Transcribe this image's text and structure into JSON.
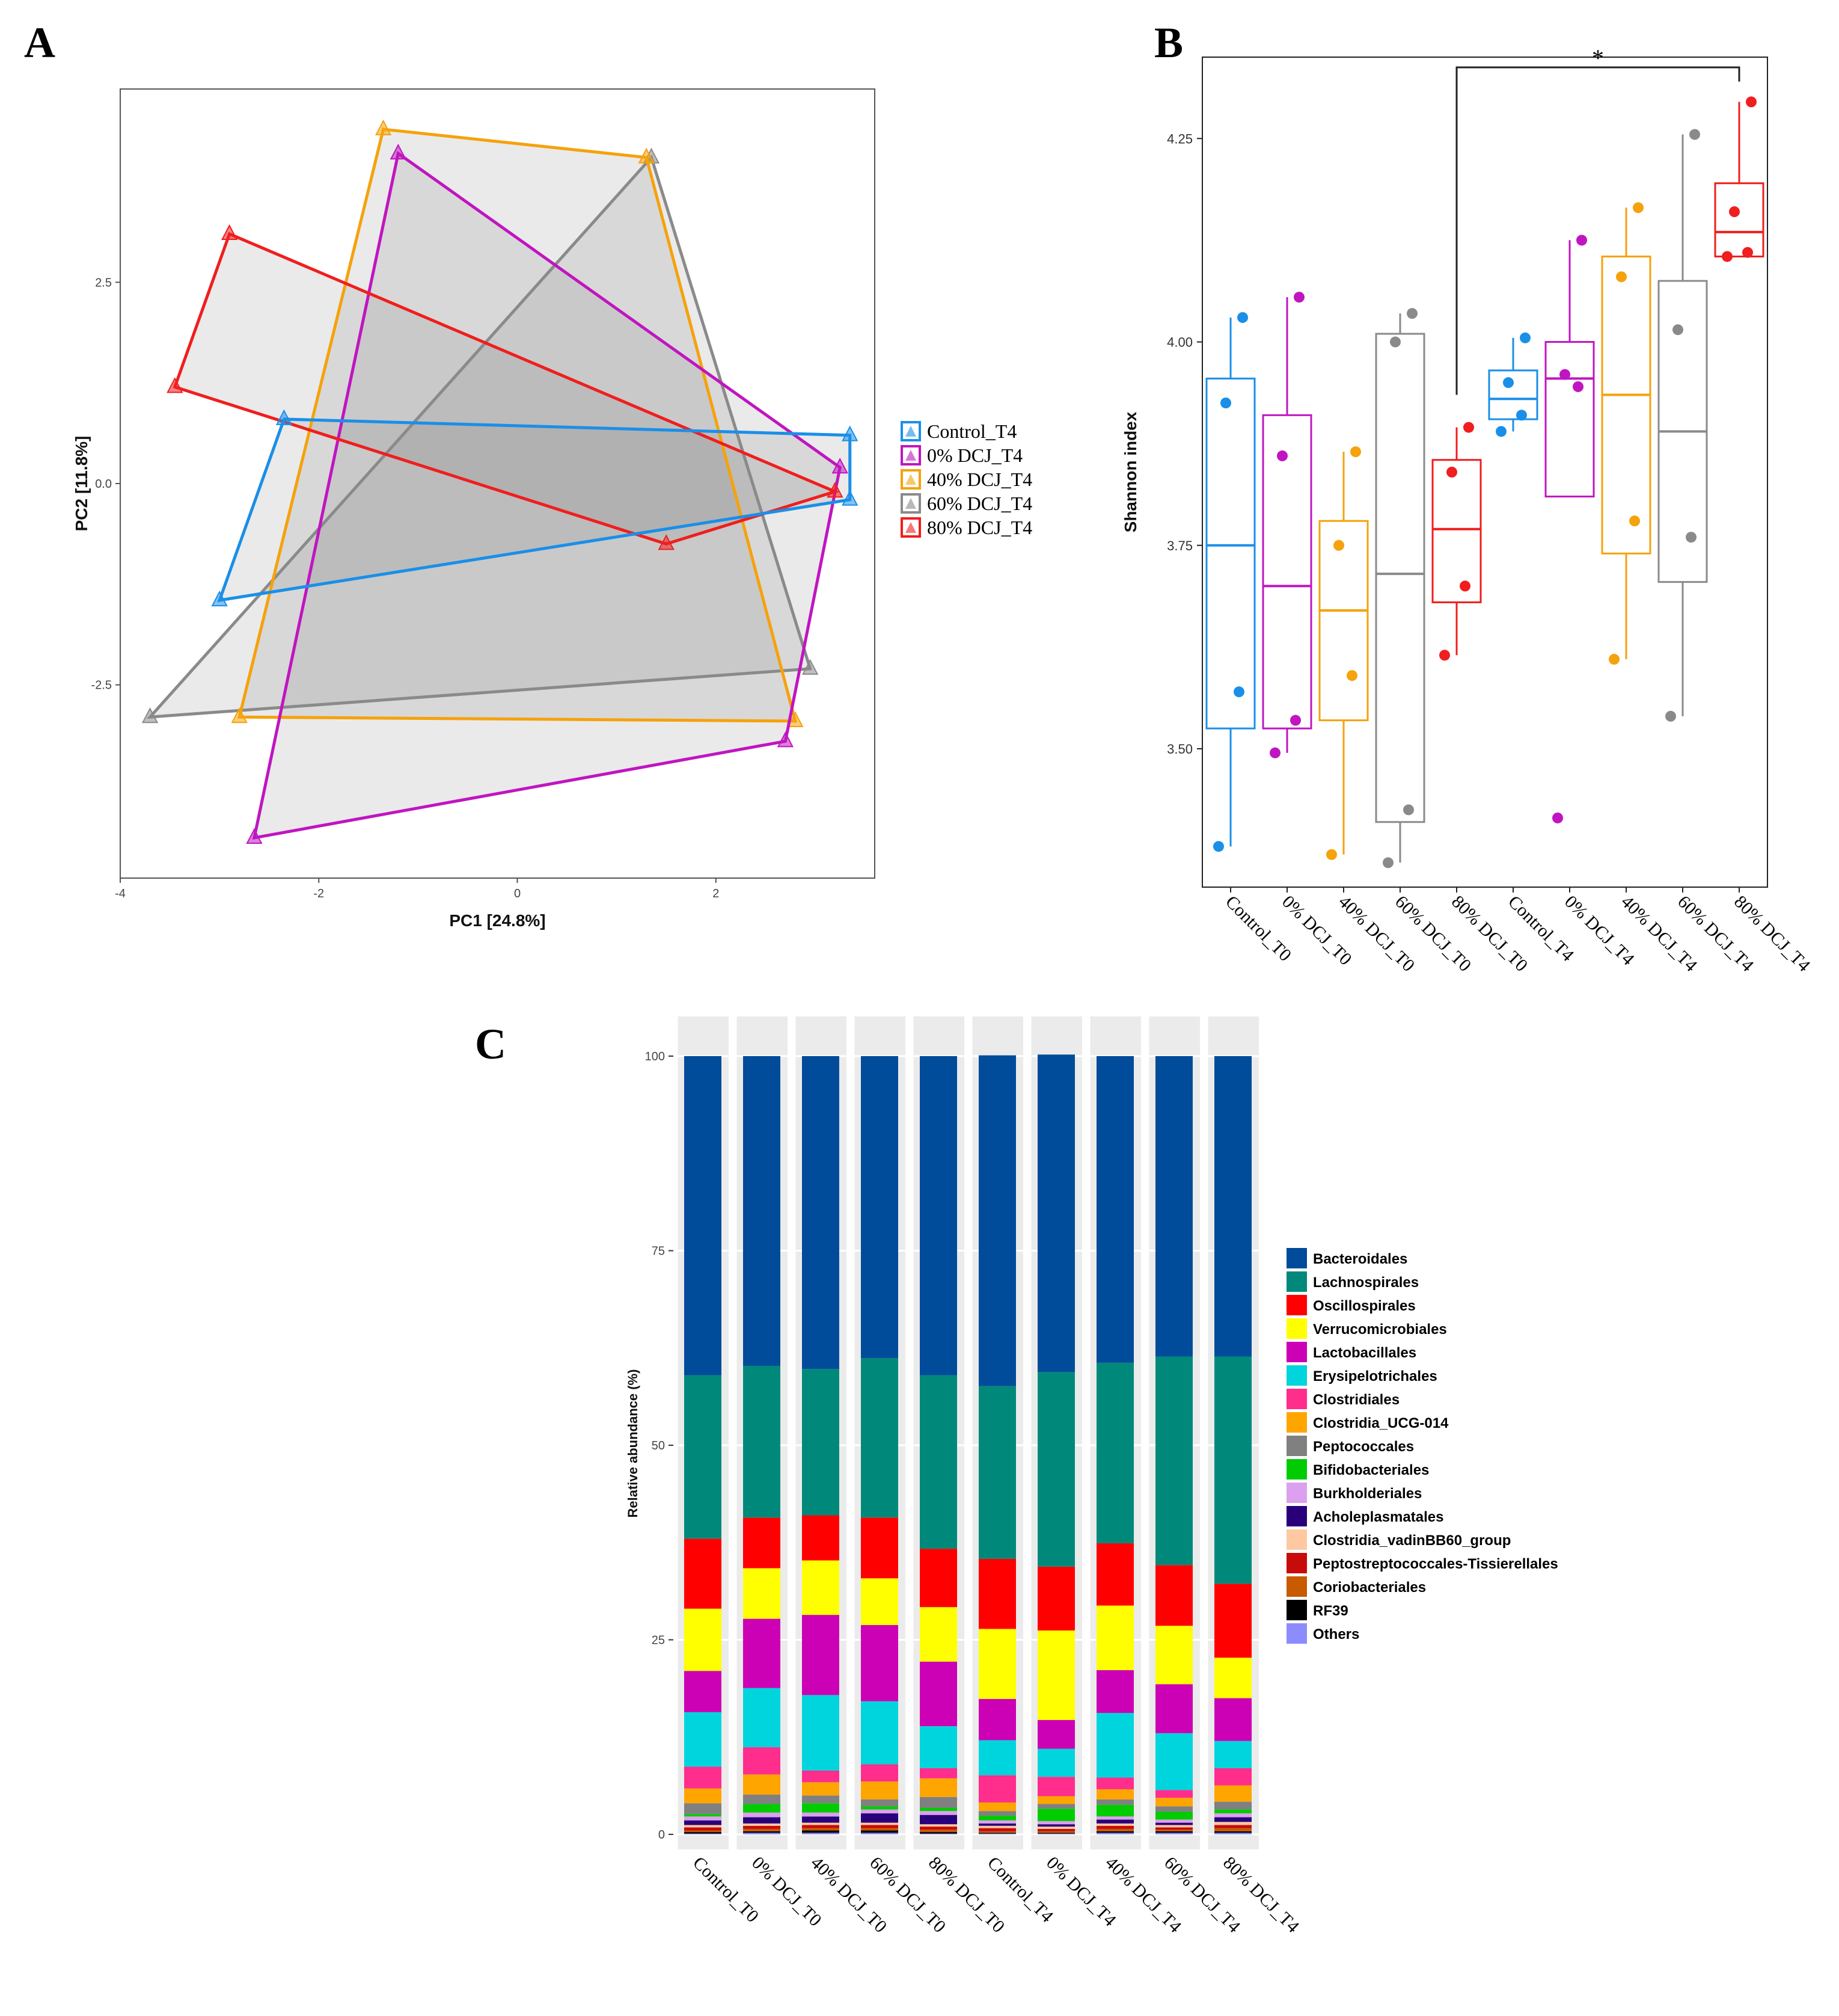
{
  "panels": {
    "a": "A",
    "b": "B",
    "c": "C"
  },
  "chart_data": [
    {
      "type": "scatter",
      "panel": "A",
      "title": "",
      "xlabel": "PC1  [24.8%]",
      "ylabel": "PC2  [11.8%]",
      "xlim": [
        -4,
        3.6
      ],
      "ylim": [
        -4.9,
        4.9
      ],
      "xticks": [
        -4,
        -2,
        0,
        2
      ],
      "yticks": [
        -2.5,
        0.0,
        2.5
      ],
      "xtick_labels": [
        "-4",
        "-2",
        "0",
        "2"
      ],
      "ytick_labels": [
        "-2.5",
        "0.0",
        "2.5"
      ],
      "legend": "right",
      "groups": [
        {
          "name": "Control_T4",
          "color": "#1a8fe8",
          "points": [
            [
              -2.35,
              0.8
            ],
            [
              3.35,
              0.6
            ],
            [
              3.35,
              -0.2
            ],
            [
              -3.0,
              -1.45
            ]
          ]
        },
        {
          "name": "0% DCJ_T4",
          "color": "#c015c0",
          "points": [
            [
              -1.2,
              4.1
            ],
            [
              3.25,
              0.2
            ],
            [
              2.7,
              -3.2
            ],
            [
              -2.65,
              -4.4
            ]
          ]
        },
        {
          "name": "40% DCJ_T4",
          "color": "#f5a20c",
          "points": [
            [
              -1.35,
              4.4
            ],
            [
              1.3,
              4.05
            ],
            [
              2.8,
              -2.95
            ],
            [
              -2.8,
              -2.9
            ]
          ]
        },
        {
          "name": "60% DCJ_T4",
          "color": "#8a8a8a",
          "points": [
            [
              1.35,
              4.05
            ],
            [
              2.95,
              -2.3
            ],
            [
              -3.7,
              -2.9
            ]
          ]
        },
        {
          "name": "80% DCJ_T4",
          "color": "#f01e1e",
          "points": [
            [
              -2.9,
              3.1
            ],
            [
              3.2,
              -0.1
            ],
            [
              1.5,
              -0.75
            ],
            [
              -3.45,
              1.2
            ]
          ]
        }
      ]
    },
    {
      "type": "box",
      "panel": "B",
      "title": "",
      "xlabel": "",
      "ylabel": "Shannon index",
      "ylim": [
        3.33,
        4.35
      ],
      "yticks": [
        3.5,
        3.75,
        4.0,
        4.25
      ],
      "ytick_labels": [
        "3.50",
        "3.75",
        "4.00",
        "4.25"
      ],
      "categories": [
        "Control_T0",
        "0% DCJ_T0",
        "40% DCJ_T0",
        "60% DCJ_T0",
        "80% DCJ_T0",
        "Control_T4",
        "0% DCJ_T4",
        "40% DCJ_T4",
        "60% DCJ_T4",
        "80% DCJ_T4"
      ],
      "colors": [
        "#1a8fe8",
        "#c015c0",
        "#f5a20c",
        "#8a8a8a",
        "#f01e1e",
        "#1a8fe8",
        "#c015c0",
        "#f5a20c",
        "#8a8a8a",
        "#f01e1e"
      ],
      "boxes": [
        {
          "min": 3.38,
          "q1": 3.525,
          "median": 3.75,
          "q3": 3.955,
          "max": 4.03,
          "points": [
            3.38,
            3.57,
            3.925,
            4.03
          ]
        },
        {
          "min": 3.495,
          "q1": 3.525,
          "median": 3.7,
          "q3": 3.91,
          "max": 4.055,
          "points": [
            3.495,
            3.535,
            3.86,
            4.055
          ]
        },
        {
          "min": 3.37,
          "q1": 3.535,
          "median": 3.67,
          "q3": 3.78,
          "max": 3.865,
          "points": [
            3.37,
            3.59,
            3.75,
            3.865
          ]
        },
        {
          "min": 3.36,
          "q1": 3.41,
          "median": 3.715,
          "q3": 4.01,
          "max": 4.035,
          "points": [
            3.36,
            3.425,
            4.0,
            4.035
          ]
        },
        {
          "min": 3.615,
          "q1": 3.68,
          "median": 3.77,
          "q3": 3.855,
          "max": 3.895,
          "points": [
            3.615,
            3.7,
            3.84,
            3.895
          ]
        },
        {
          "min": 3.89,
          "q1": 3.905,
          "median": 3.93,
          "q3": 3.965,
          "max": 4.005,
          "points": [
            3.89,
            3.91,
            3.95,
            4.005
          ]
        },
        {
          "min": 3.81,
          "q1": 3.81,
          "median": 3.955,
          "q3": 4.0,
          "max": 4.125,
          "points": [
            3.415,
            3.945,
            3.96,
            4.125
          ]
        },
        {
          "min": 3.61,
          "q1": 3.74,
          "median": 3.935,
          "q3": 4.105,
          "max": 4.165,
          "points": [
            3.61,
            3.78,
            4.08,
            4.165
          ]
        },
        {
          "min": 3.54,
          "q1": 3.705,
          "median": 3.89,
          "q3": 4.075,
          "max": 4.255,
          "points": [
            3.54,
            3.76,
            4.015,
            4.255
          ]
        },
        {
          "min": 4.105,
          "q1": 4.105,
          "median": 4.135,
          "q3": 4.195,
          "max": 4.295,
          "points": [
            4.105,
            4.11,
            4.16,
            4.295
          ]
        }
      ],
      "annotations": [
        {
          "from": "80% DCJ_T0",
          "to": "80% DCJ_T4",
          "text": "*"
        }
      ]
    },
    {
      "type": "bar",
      "stacked": true,
      "panel": "C",
      "title": "",
      "xlabel": "",
      "ylabel": "Relative abundance (%)",
      "ylim": [
        0,
        100
      ],
      "yticks": [
        0,
        25,
        50,
        75,
        100
      ],
      "ytick_labels": [
        "0",
        "25",
        "50",
        "75",
        "100"
      ],
      "legend": "right",
      "categories": [
        "Control_T0",
        "0% DCJ_T0",
        "40% DCJ_T0",
        "60% DCJ_T0",
        "80% DCJ_T0",
        "Control_T4",
        "0% DCJ_T4",
        "40% DCJ_T4",
        "60% DCJ_T4",
        "80% DCJ_T4"
      ],
      "series": [
        {
          "name": "Bacteroidales",
          "color": "#004b9a",
          "values": [
            41.0,
            39.8,
            40.2,
            38.8,
            41.0,
            42.5,
            40.8,
            39.4,
            38.6,
            38.6
          ]
        },
        {
          "name": "Lachnospirales",
          "color": "#00897b",
          "values": [
            21.0,
            19.5,
            18.8,
            20.5,
            22.3,
            22.2,
            25.0,
            23.2,
            26.8,
            29.2
          ]
        },
        {
          "name": "Oscillospirales",
          "color": "#ff0000",
          "values": [
            9.0,
            6.5,
            5.8,
            7.8,
            7.5,
            9.0,
            8.2,
            8.0,
            7.8,
            9.5
          ]
        },
        {
          "name": "Verrucomicrobiales",
          "color": "#ffff00",
          "values": [
            8.0,
            6.5,
            7.0,
            6.0,
            7.0,
            9.0,
            11.5,
            8.3,
            7.5,
            5.2
          ]
        },
        {
          "name": "Lactobacillales",
          "color": "#cc00b4",
          "values": [
            5.3,
            8.9,
            10.3,
            9.8,
            8.3,
            5.3,
            3.7,
            5.5,
            6.3,
            5.5
          ]
        },
        {
          "name": "Erysipelotrichales",
          "color": "#00d4dc",
          "values": [
            7.0,
            7.6,
            9.7,
            8.1,
            5.4,
            4.5,
            3.6,
            8.3,
            7.3,
            3.5
          ]
        },
        {
          "name": "Clostridiales",
          "color": "#ff2d8c",
          "values": [
            2.8,
            3.5,
            1.5,
            2.2,
            1.3,
            3.5,
            2.5,
            1.5,
            1.0,
            2.2
          ]
        },
        {
          "name": "Clostridia_UCG-014",
          "color": "#ffa500",
          "values": [
            1.9,
            2.6,
            1.7,
            2.3,
            2.4,
            1.1,
            1.0,
            1.3,
            1.1,
            2.1
          ]
        },
        {
          "name": "Peptococcales",
          "color": "#808080",
          "values": [
            1.4,
            1.2,
            1.0,
            0.9,
            1.4,
            0.6,
            0.6,
            0.7,
            0.7,
            1.0
          ]
        },
        {
          "name": "Bifidobacteriales",
          "color": "#00cc00",
          "values": [
            0.3,
            1.1,
            1.2,
            0.4,
            0.4,
            0.6,
            1.6,
            1.5,
            1.0,
            0.5
          ]
        },
        {
          "name": "Burkholderiales",
          "color": "#dda0ee",
          "values": [
            0.5,
            0.6,
            0.5,
            0.5,
            0.5,
            0.4,
            0.4,
            0.4,
            0.4,
            0.5
          ]
        },
        {
          "name": "Acholeplasmatales",
          "color": "#2a007a",
          "values": [
            0.6,
            0.8,
            0.8,
            1.2,
            1.2,
            0.3,
            0.3,
            0.5,
            0.3,
            0.6
          ]
        },
        {
          "name": "Clostridia_vadinBB60_group",
          "color": "#ffc8a0",
          "values": [
            0.3,
            0.3,
            0.3,
            0.3,
            0.3,
            0.3,
            0.3,
            0.3,
            0.3,
            0.4
          ]
        },
        {
          "name": "Peptostreptococcales-Tissierellales",
          "color": "#c80a0a",
          "values": [
            0.4,
            0.4,
            0.4,
            0.4,
            0.4,
            0.4,
            0.3,
            0.4,
            0.3,
            0.4
          ]
        },
        {
          "name": "Coriobacteriales",
          "color": "#c85a00",
          "values": [
            0.2,
            0.3,
            0.3,
            0.3,
            0.3,
            0.2,
            0.2,
            0.3,
            0.2,
            0.4
          ]
        },
        {
          "name": "RF39",
          "color": "#000000",
          "values": [
            0.2,
            0.2,
            0.3,
            0.3,
            0.2,
            0.1,
            0.1,
            0.2,
            0.2,
            0.2
          ]
        },
        {
          "name": "Others",
          "color": "#8c8cff",
          "values": [
            0.1,
            0.2,
            0.2,
            0.2,
            0.1,
            0.1,
            0.1,
            0.2,
            0.2,
            0.2
          ]
        }
      ]
    }
  ]
}
